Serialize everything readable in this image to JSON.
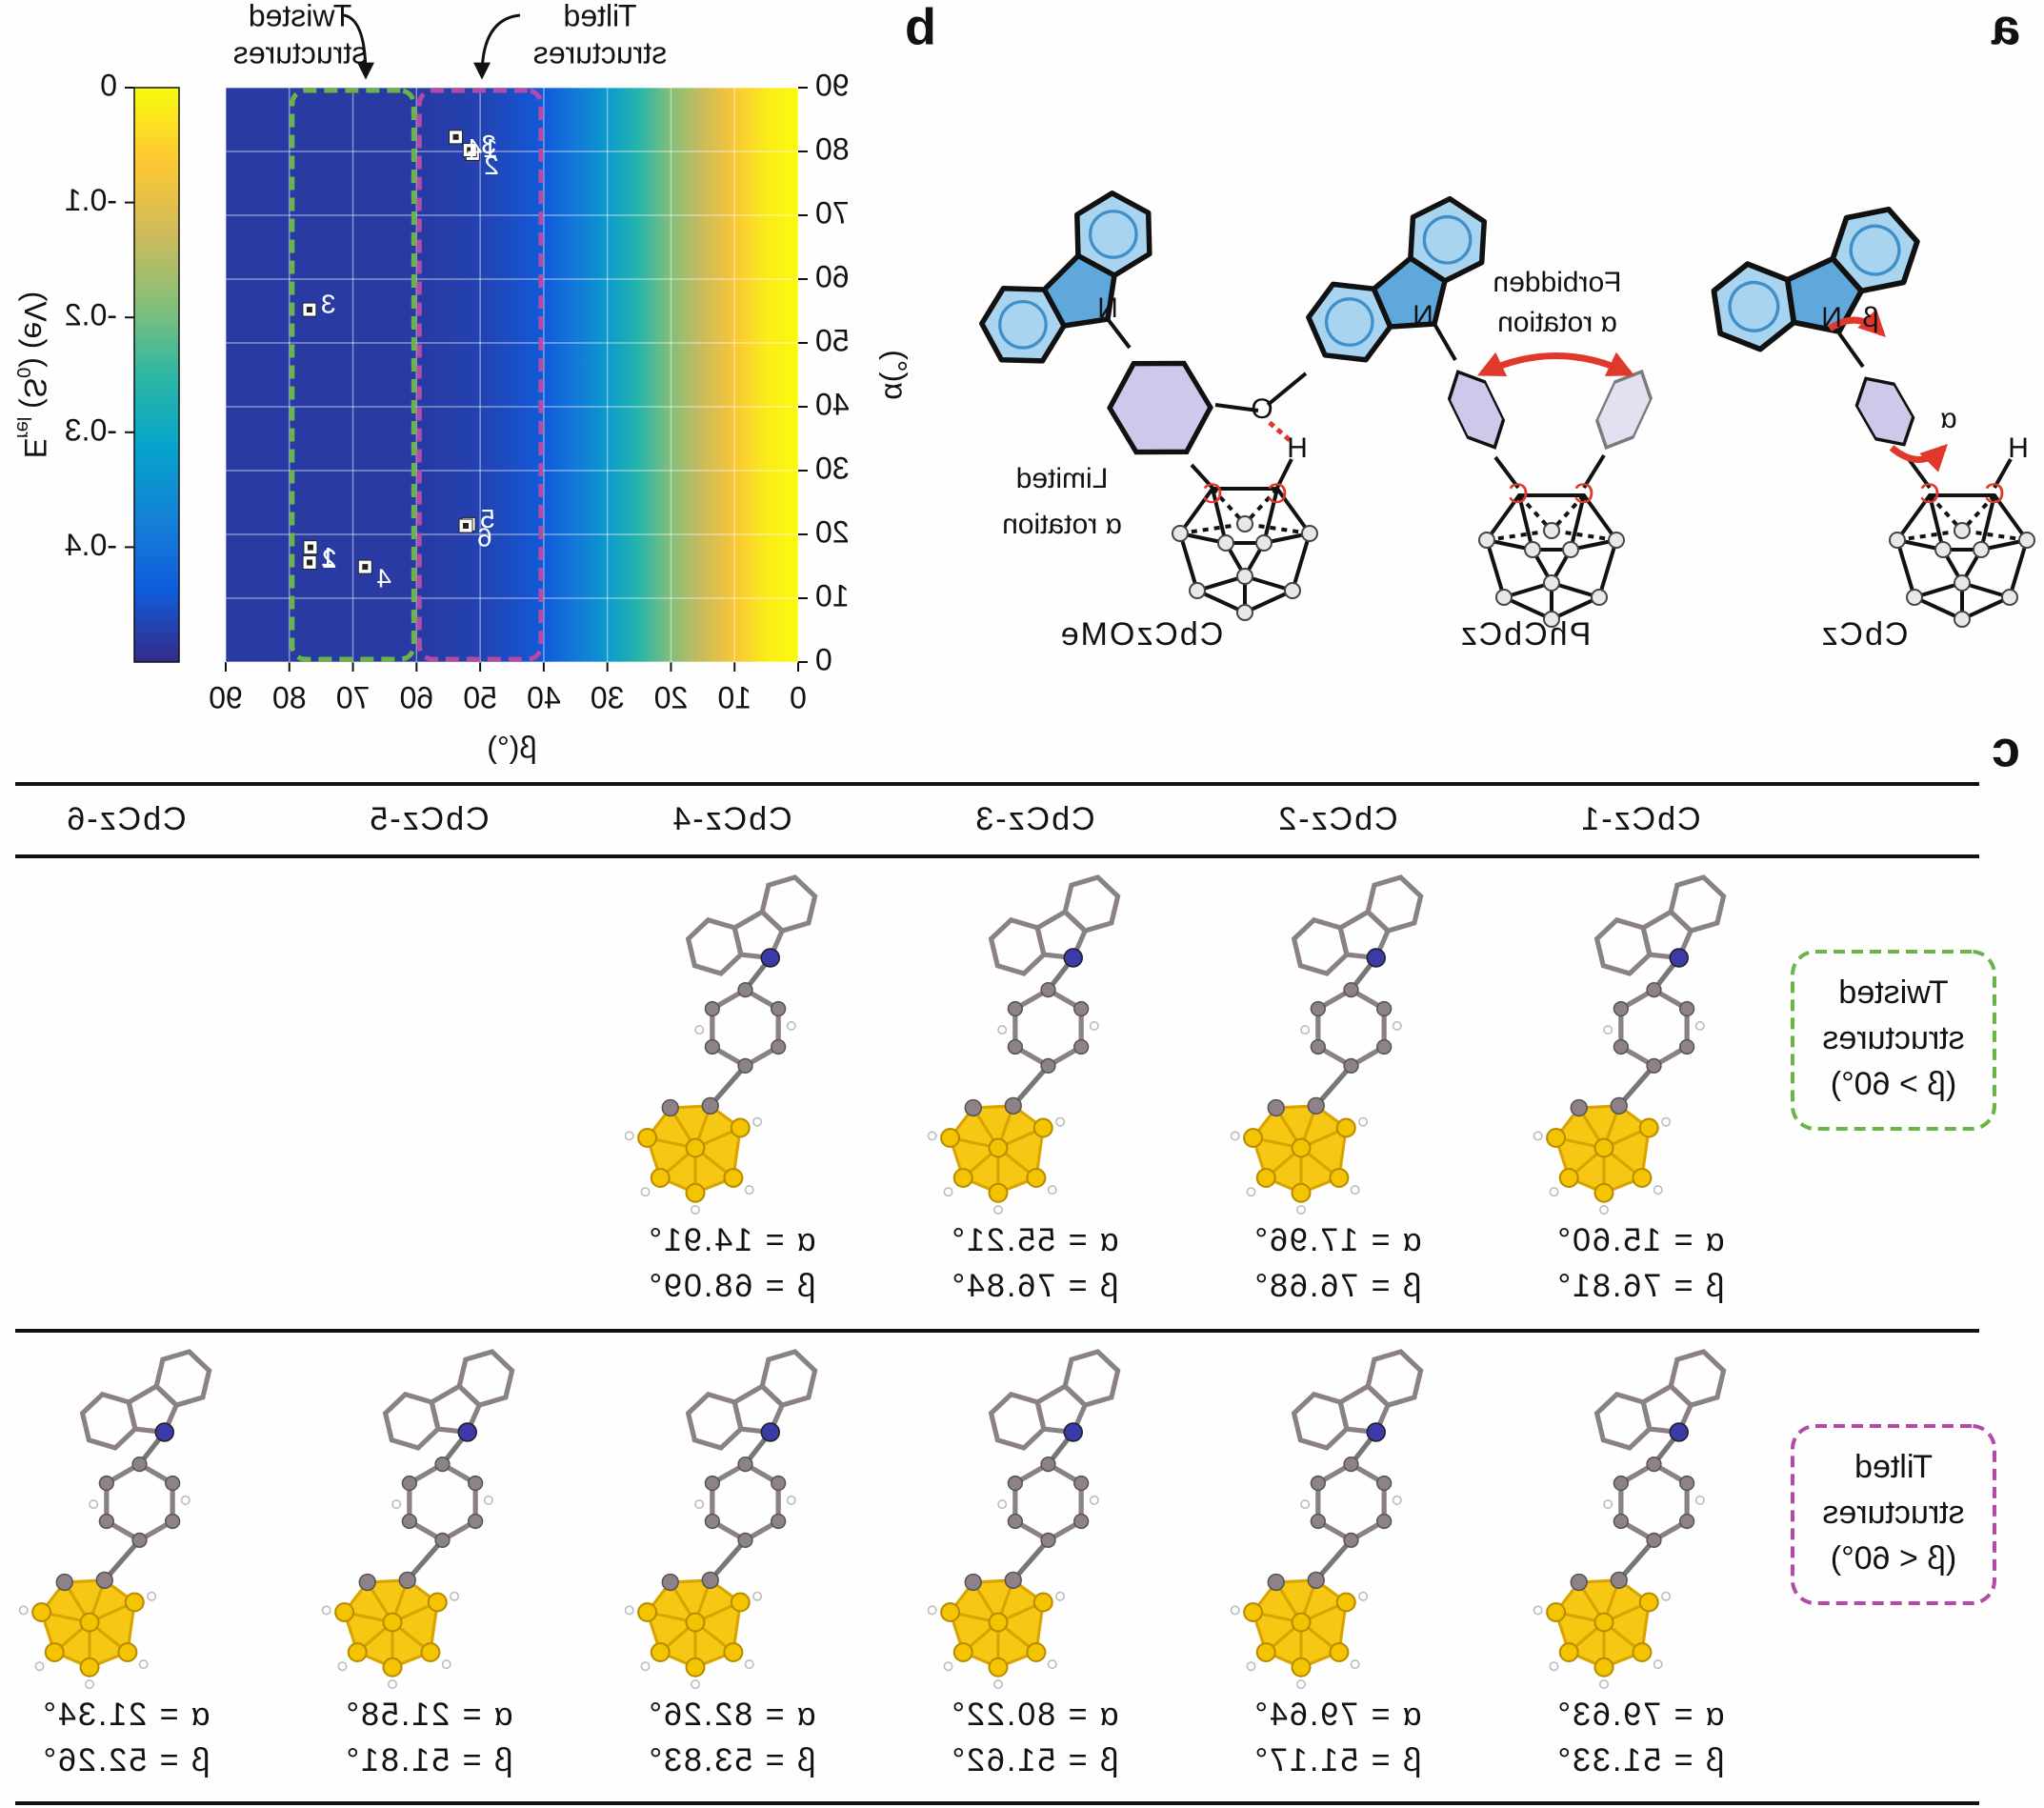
{
  "panel_labels": [
    "a",
    "b",
    "c"
  ],
  "molecules": [
    {
      "name": "CbCz",
      "atoms": [
        "N",
        "C",
        "C",
        "H"
      ],
      "angles": [
        "β",
        "α"
      ]
    },
    {
      "name": "PhCbCz",
      "atoms": [
        "N",
        "C",
        "C"
      ],
      "note_lines": [
        "Forbidden",
        "α rotation"
      ]
    },
    {
      "name": "CbCzOMe",
      "atoms": [
        "N",
        "C",
        "C",
        "H",
        "O"
      ],
      "note_lines": [
        "Limited",
        "α rotation"
      ]
    }
  ],
  "chart_data": {
    "type": "scatter",
    "xlabel": "β(°)",
    "ylabel": "α(°)",
    "xlim": [
      0,
      90
    ],
    "xticks": [
      0,
      10,
      20,
      30,
      40,
      50,
      60,
      70,
      80,
      90
    ],
    "ylim": [
      0,
      90
    ],
    "yticks": [
      0,
      10,
      20,
      30,
      40,
      50,
      60,
      70,
      80,
      90
    ],
    "grid": true,
    "heatmap": {
      "x": [
        0,
        5,
        10,
        15,
        20,
        25,
        30,
        35,
        40,
        50,
        60,
        70,
        80,
        90
      ],
      "values": [
        0,
        -0.02,
        -0.07,
        -0.13,
        -0.19,
        -0.26,
        -0.33,
        -0.39,
        -0.44,
        -0.47,
        -0.48,
        -0.48,
        -0.48,
        -0.48
      ]
    },
    "colormap": [
      "#352a87",
      "#0f5cdd",
      "#1481d6",
      "#06a4ca",
      "#2eb7a4",
      "#87bf77",
      "#d1bb59",
      "#fec832",
      "#f9fb0e"
    ],
    "colorbar": {
      "label": [
        {
          "text": "E"
        },
        {
          "text": "rel",
          "sub": true
        },
        {
          "text": " (S"
        },
        {
          "text": "0",
          "sub": true
        },
        {
          "text": ") (eV)"
        }
      ],
      "lim": [
        -0.5,
        0
      ],
      "ticks": [
        0,
        -0.1,
        -0.2,
        -0.3,
        -0.4
      ]
    },
    "regions": [
      {
        "lines": [
          "Twisted",
          "structures"
        ],
        "color": "#6ab545",
        "xlim": [
          60,
          80
        ]
      },
      {
        "lines": [
          "Tilted",
          "structures"
        ],
        "color": "#b24aa6",
        "xlim": [
          40,
          60
        ]
      }
    ],
    "series": [
      {
        "x": [
          76.81,
          76.68,
          76.84,
          68.09
        ],
        "values": [
          15.6,
          17.96,
          55.21,
          14.91
        ],
        "labels": [
          "1",
          "2",
          "3",
          "4"
        ],
        "color": "#ffffff"
      },
      {
        "x": [
          51.33,
          51.17,
          51.62,
          53.83,
          51.81,
          52.26
        ],
        "values": [
          79.63,
          79.64,
          80.22,
          82.26,
          21.58,
          21.34
        ],
        "labels": [
          "1",
          "2",
          "3",
          "4",
          "5",
          "6"
        ],
        "color": "#ffffff"
      }
    ]
  },
  "table": {
    "header": [
      "CbCz-1",
      "CbCz-2",
      "CbCz-3",
      "CbCz-4",
      "CbCz-5",
      "CbCz-6"
    ],
    "rows": [
      {
        "label_lines": [
          "Twisted",
          "structures",
          "(β > 60°)"
        ],
        "color": "#6ab545",
        "cells": [
          [
            "α = 15.60°",
            "β = 76.81°"
          ],
          [
            "α = 17.96°",
            "β = 76.68°"
          ],
          [
            "α = 55.21°",
            "β = 76.84°"
          ],
          [
            "α = 14.91°",
            "β = 68.09°"
          ],
          null,
          null
        ]
      },
      {
        "label_lines": [
          "Tilted",
          "structures",
          "(β < 60°)"
        ],
        "color": "#b24aa6",
        "cells": [
          [
            "α = 79.63°",
            "β = 51.33°"
          ],
          [
            "α = 79.64°",
            "β = 51.17°"
          ],
          [
            "α = 80.22°",
            "β = 51.62°"
          ],
          [
            "α = 82.26°",
            "β = 53.83°"
          ],
          [
            "α = 21.58°",
            "β = 51.81°"
          ],
          [
            "α = 21.34°",
            "β = 52.26°"
          ]
        ]
      }
    ]
  }
}
